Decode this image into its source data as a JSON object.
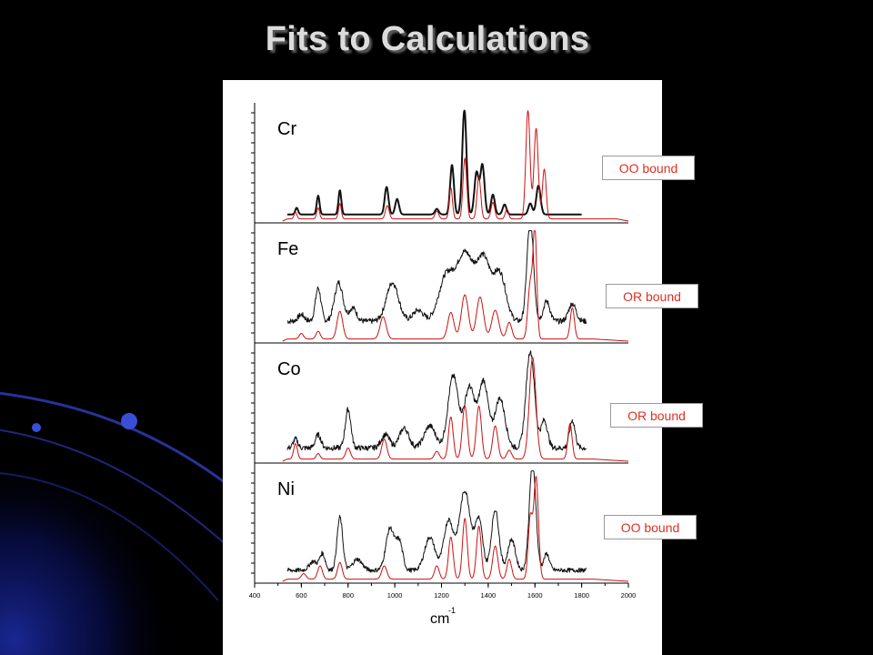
{
  "slide": {
    "title": "Fits to Calculations"
  },
  "chart_data": {
    "type": "line",
    "x_axis": {
      "label_base": "cm",
      "label_exponent": "-1",
      "range": [
        400,
        2000
      ],
      "ticks": [
        "400",
        "600",
        "800",
        "1000",
        "1200",
        "1400",
        "1600",
        "1800",
        "2000"
      ]
    },
    "panels": [
      {
        "element": "Cr",
        "binding": "OO bound",
        "series": [
          {
            "color": "#111111",
            "x_max": 1800,
            "baseline": 0.06,
            "noise": 0.0,
            "stroke": 2.0,
            "peaks": [
              [
                580,
                0.06,
                6
              ],
              [
                672,
                0.17,
                6
              ],
              [
                765,
                0.22,
                6
              ],
              [
                965,
                0.25,
                8
              ],
              [
                1010,
                0.14,
                8
              ],
              [
                1180,
                0.05,
                8
              ],
              [
                1245,
                0.45,
                8
              ],
              [
                1298,
                0.95,
                9
              ],
              [
                1350,
                0.38,
                9
              ],
              [
                1375,
                0.45,
                9
              ],
              [
                1420,
                0.18,
                8
              ],
              [
                1470,
                0.09,
                8
              ],
              [
                1580,
                0.1,
                8
              ],
              [
                1615,
                0.26,
                9
              ]
            ]
          },
          {
            "color": "#cc1111",
            "x_max": 1950,
            "baseline": 0.02,
            "noise": 0.0,
            "stroke": 1.0,
            "peaks": [
              [
                575,
                0.06,
                6
              ],
              [
                672,
                0.1,
                6
              ],
              [
                765,
                0.14,
                6
              ],
              [
                968,
                0.12,
                8
              ],
              [
                1180,
                0.07,
                8
              ],
              [
                1240,
                0.28,
                7
              ],
              [
                1300,
                0.55,
                8
              ],
              [
                1360,
                0.38,
                8
              ],
              [
                1420,
                0.15,
                8
              ],
              [
                1480,
                0.09,
                7
              ],
              [
                1570,
                0.98,
                9
              ],
              [
                1605,
                0.82,
                9
              ],
              [
                1640,
                0.45,
                8
              ]
            ]
          }
        ]
      },
      {
        "element": "Fe",
        "binding": "OR bound",
        "series": [
          {
            "color": "#111111",
            "x_max": 1820,
            "baseline": 0.18,
            "noise": 0.05,
            "stroke": 1.0,
            "peaks": [
              [
                600,
                0.06,
                14
              ],
              [
                672,
                0.3,
                12
              ],
              [
                760,
                0.35,
                18
              ],
              [
                820,
                0.12,
                16
              ],
              [
                990,
                0.35,
                26
              ],
              [
                1100,
                0.1,
                22
              ],
              [
                1220,
                0.4,
                32
              ],
              [
                1300,
                0.6,
                35
              ],
              [
                1380,
                0.55,
                30
              ],
              [
                1450,
                0.42,
                26
              ],
              [
                1580,
                0.92,
                14
              ],
              [
                1650,
                0.18,
                14
              ],
              [
                1760,
                0.16,
                16
              ]
            ]
          },
          {
            "color": "#cc1111",
            "x_max": 1850,
            "baseline": 0.02,
            "noise": 0.0,
            "stroke": 1.0,
            "peaks": [
              [
                600,
                0.05,
                9
              ],
              [
                672,
                0.07,
                9
              ],
              [
                765,
                0.25,
                12
              ],
              [
                950,
                0.2,
                13
              ],
              [
                1240,
                0.24,
                13
              ],
              [
                1300,
                0.4,
                15
              ],
              [
                1365,
                0.38,
                15
              ],
              [
                1430,
                0.26,
                15
              ],
              [
                1490,
                0.15,
                11
              ],
              [
                1580,
                0.5,
                10
              ],
              [
                1600,
                0.95,
                8
              ],
              [
                1760,
                0.28,
                9
              ]
            ]
          }
        ]
      },
      {
        "element": "Co",
        "binding": "OR bound",
        "series": [
          {
            "color": "#111111",
            "x_max": 1820,
            "baseline": 0.12,
            "noise": 0.05,
            "stroke": 1.0,
            "peaks": [
              [
                575,
                0.08,
                10
              ],
              [
                672,
                0.12,
                12
              ],
              [
                800,
                0.35,
                12
              ],
              [
                960,
                0.12,
                18
              ],
              [
                1040,
                0.18,
                20
              ],
              [
                1150,
                0.2,
                24
              ],
              [
                1250,
                0.65,
                22
              ],
              [
                1320,
                0.55,
                22
              ],
              [
                1380,
                0.6,
                20
              ],
              [
                1450,
                0.45,
                22
              ],
              [
                1580,
                0.88,
                18
              ],
              [
                1640,
                0.25,
                14
              ],
              [
                1760,
                0.25,
                12
              ]
            ]
          },
          {
            "color": "#cc1111",
            "x_max": 1850,
            "baseline": 0.02,
            "noise": 0.0,
            "stroke": 1.0,
            "peaks": [
              [
                575,
                0.14,
                8
              ],
              [
                672,
                0.05,
                8
              ],
              [
                800,
                0.1,
                10
              ],
              [
                955,
                0.18,
                11
              ],
              [
                1180,
                0.07,
                10
              ],
              [
                1240,
                0.38,
                10
              ],
              [
                1300,
                0.48,
                11
              ],
              [
                1360,
                0.48,
                11
              ],
              [
                1430,
                0.3,
                11
              ],
              [
                1490,
                0.08,
                10
              ],
              [
                1590,
                0.92,
                14
              ],
              [
                1750,
                0.32,
                9
              ]
            ]
          }
        ]
      },
      {
        "element": "Ni",
        "binding": "OO bound",
        "series": [
          {
            "color": "#111111",
            "x_max": 1820,
            "baseline": 0.1,
            "noise": 0.04,
            "stroke": 1.0,
            "peaks": [
              [
                650,
                0.08,
                16
              ],
              [
                690,
                0.15,
                12
              ],
              [
                765,
                0.48,
                12
              ],
              [
                840,
                0.1,
                20
              ],
              [
                980,
                0.38,
                18
              ],
              [
                1020,
                0.25,
                14
              ],
              [
                1150,
                0.3,
                22
              ],
              [
                1230,
                0.45,
                20
              ],
              [
                1300,
                0.72,
                24
              ],
              [
                1360,
                0.45,
                16
              ],
              [
                1430,
                0.55,
                16
              ],
              [
                1500,
                0.28,
                16
              ],
              [
                1590,
                0.98,
                14
              ],
              [
                1650,
                0.15,
                12
              ]
            ]
          },
          {
            "color": "#cc1111",
            "x_max": 1850,
            "baseline": 0.02,
            "noise": 0.0,
            "stroke": 1.0,
            "peaks": [
              [
                610,
                0.05,
                10
              ],
              [
                680,
                0.12,
                10
              ],
              [
                765,
                0.15,
                10
              ],
              [
                955,
                0.12,
                11
              ],
              [
                1180,
                0.12,
                10
              ],
              [
                1240,
                0.38,
                10
              ],
              [
                1300,
                0.55,
                10
              ],
              [
                1360,
                0.48,
                10
              ],
              [
                1430,
                0.3,
                11
              ],
              [
                1490,
                0.18,
                10
              ],
              [
                1580,
                0.55,
                9
              ],
              [
                1605,
                0.92,
                10
              ]
            ]
          }
        ]
      }
    ]
  }
}
